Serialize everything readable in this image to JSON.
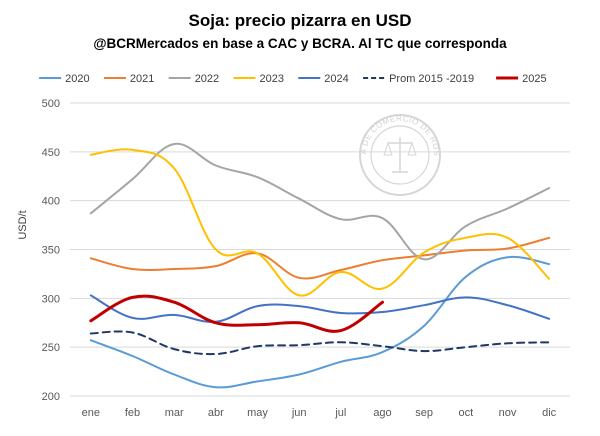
{
  "chart_data": {
    "type": "line",
    "title": "Soja: precio pizarra en USD",
    "subtitle": "@BCRMercados en base a CAC y BCRA. Al TC que corresponda",
    "xlabel": "",
    "ylabel": "USD/t",
    "ylim": [
      200,
      500
    ],
    "yticks": [
      200,
      250,
      300,
      350,
      400,
      450,
      500
    ],
    "grid": true,
    "legend_position": "top",
    "categories": [
      "ene",
      "feb",
      "mar",
      "abr",
      "may",
      "jun",
      "jul",
      "ago",
      "sep",
      "oct",
      "nov",
      "dic"
    ],
    "series": [
      {
        "name": "2020",
        "color": "#5b9bd5",
        "dash": "solid",
        "width": 2,
        "values": [
          257,
          241,
          222,
          209,
          215,
          222,
          235,
          245,
          272,
          322,
          342,
          335
        ]
      },
      {
        "name": "2021",
        "color": "#ed7d31",
        "dash": "solid",
        "width": 2,
        "values": [
          341,
          330,
          330,
          333,
          346,
          321,
          329,
          339,
          344,
          349,
          351,
          362
        ]
      },
      {
        "name": "2022",
        "color": "#a5a5a5",
        "dash": "solid",
        "width": 2,
        "values": [
          387,
          422,
          458,
          436,
          424,
          402,
          381,
          382,
          340,
          374,
          392,
          413
        ]
      },
      {
        "name": "2023",
        "color": "#ffc000",
        "dash": "solid",
        "width": 2,
        "values": [
          447,
          452,
          433,
          350,
          346,
          303,
          327,
          310,
          347,
          362,
          362,
          320
        ]
      },
      {
        "name": "2024",
        "color": "#4472c4",
        "dash": "solid",
        "width": 2,
        "values": [
          303,
          280,
          283,
          276,
          292,
          292,
          285,
          286,
          293,
          301,
          293,
          279
        ]
      },
      {
        "name": "Prom 2015 -2019",
        "color": "#1f3864",
        "dash": "dashed",
        "width": 2,
        "values": [
          264,
          265,
          248,
          243,
          251,
          252,
          255,
          251,
          246,
          250,
          254,
          255
        ]
      },
      {
        "name": "2025",
        "color": "#c00000",
        "dash": "solid",
        "width": 3,
        "values": [
          277,
          301,
          296,
          275,
          273,
          275,
          267,
          296,
          null,
          null,
          null,
          null
        ]
      }
    ]
  },
  "watermark": {
    "text": "BOLSA DE COMERCIO DE ROSARIO"
  }
}
